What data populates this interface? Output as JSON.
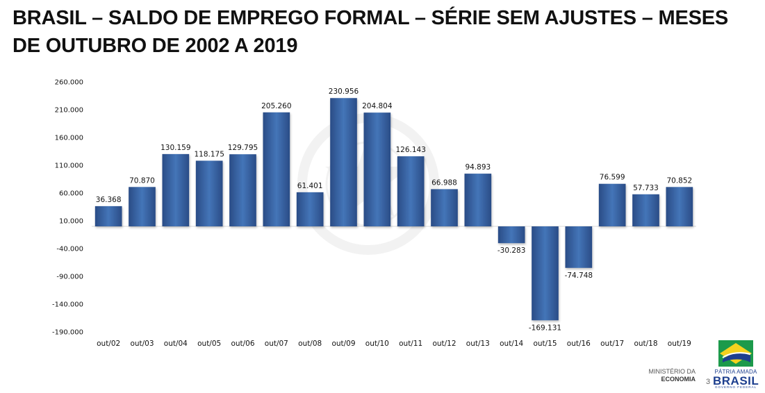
{
  "title": {
    "line1": "BRASIL – SALDO DE EMPREGO FORMAL – SÉRIE SEM AJUSTES – MESES",
    "line2": "DE OUTUBRO DE 2002 A 2019"
  },
  "chart_data": {
    "type": "bar",
    "categories": [
      "out/02",
      "out/03",
      "out/04",
      "out/05",
      "out/06",
      "out/07",
      "out/08",
      "out/09",
      "out/10",
      "out/11",
      "out/12",
      "out/13",
      "out/14",
      "out/15",
      "out/16",
      "out/17",
      "out/18",
      "out/19"
    ],
    "values": [
      36368,
      70870,
      130159,
      118175,
      129795,
      205260,
      61401,
      230956,
      204804,
      126143,
      66988,
      94893,
      -30283,
      -169131,
      -74748,
      76599,
      57733,
      70852
    ],
    "value_labels": [
      "36.368",
      "70.870",
      "130.159",
      "118.175",
      "129.795",
      "205.260",
      "61.401",
      "230.956",
      "204.804",
      "126.143",
      "66.988",
      "94.893",
      "-30.283",
      "-169.131",
      "-74.748",
      "76.599",
      "57.733",
      "70.852"
    ],
    "yticks": [
      260000,
      210000,
      160000,
      110000,
      60000,
      10000,
      -40000,
      -90000,
      -140000,
      -190000
    ],
    "ytick_labels": [
      "260.000",
      "210.000",
      "160.000",
      "110.000",
      "60.000",
      "10.000",
      "-40.000",
      "-90.000",
      "-140.000",
      "-190.000"
    ],
    "ylim": [
      -190000,
      260000
    ],
    "grid": false,
    "legend": "none",
    "bar_color": "#3a65a8"
  },
  "footer": {
    "ministry_line1": "MINISTÉRIO DA",
    "ministry_line2": "ECONOMIA",
    "page_number": "3",
    "brand_line1": "PÁTRIA AMADA",
    "brand_line2": "BRASIL",
    "brand_line3": "GOVERNO FEDERAL"
  }
}
